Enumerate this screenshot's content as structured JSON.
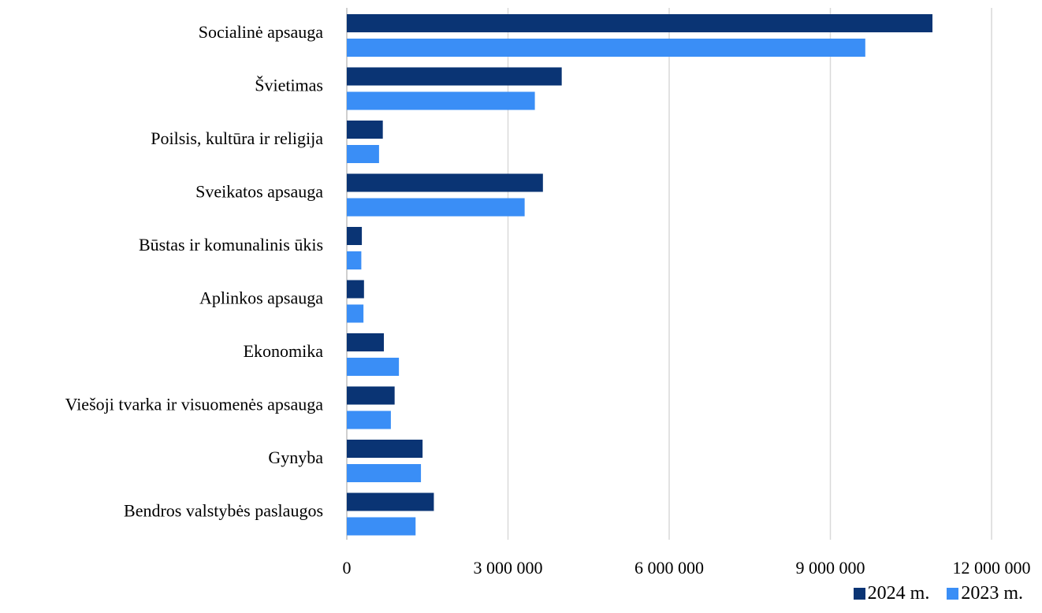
{
  "chart_data": {
    "type": "bar",
    "orientation": "horizontal",
    "categories": [
      "Socialinė apsauga",
      "Švietimas",
      "Poilsis, kultūra ir religija",
      "Sveikatos apsauga",
      "Būstas ir komunalinis ūkis",
      "Aplinkos apsauga",
      "Ekonomika",
      "Viešoji tvarka ir visuomenės apsauga",
      "Gynyba",
      "Bendros valstybės paslaugos"
    ],
    "series": [
      {
        "name": "2024 m.",
        "color": "#0a3474",
        "values": [
          10900000,
          4000000,
          670000,
          3650000,
          280000,
          320000,
          690000,
          890000,
          1410000,
          1620000
        ]
      },
      {
        "name": "2023 m.",
        "color": "#3a8ef6",
        "values": [
          9650000,
          3500000,
          600000,
          3310000,
          270000,
          310000,
          970000,
          820000,
          1380000,
          1280000
        ]
      }
    ],
    "xlim": [
      0,
      12000000
    ],
    "xticks": [
      0,
      3000000,
      6000000,
      9000000,
      12000000
    ],
    "xtick_labels": [
      "0",
      "3 000 000",
      "6 000 000",
      "9 000 000",
      "12 000 000"
    ],
    "grid": "vertical",
    "legend_position": "bottom-right"
  }
}
